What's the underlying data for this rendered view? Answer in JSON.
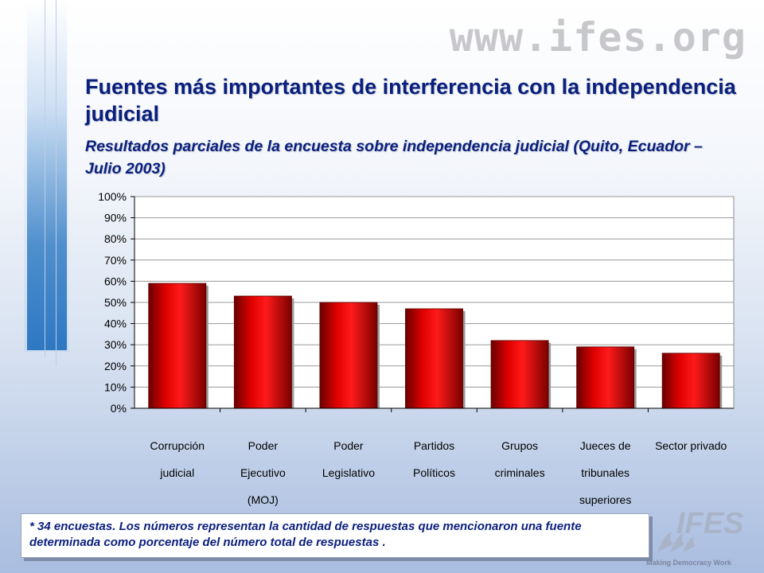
{
  "header": {
    "watermark": "www.ifes.org",
    "title": "Fuentes más importantes de interferencia con la independencia judicial",
    "subtitle": "Resultados parciales de la encuesta sobre independencia judicial (Quito, Ecuador – Julio 2003)"
  },
  "chart_data": {
    "type": "bar",
    "categories": [
      [
        "Corrupción",
        "judicial"
      ],
      [
        "Poder",
        "Ejecutivo",
        "(MOJ)"
      ],
      [
        "Poder",
        "Legislativo"
      ],
      [
        "Partidos",
        "Políticos"
      ],
      [
        "Grupos",
        "criminales"
      ],
      [
        "Jueces de",
        "tribunales",
        "superiores"
      ],
      [
        "Sector privado"
      ]
    ],
    "values": [
      59,
      53,
      50,
      47,
      32,
      29,
      26
    ],
    "ylim": [
      0,
      100
    ],
    "yticks": [
      "0%",
      "10%",
      "20%",
      "30%",
      "40%",
      "50%",
      "60%",
      "70%",
      "80%",
      "90%",
      "100%"
    ],
    "grid": true,
    "bar_color": "#e00000",
    "plot_background": "#ffffff"
  },
  "footnote": "* 34 encuestas. Los números representan la cantidad de respuestas que mencionaron una fuente determinada como porcentaje del número total de respuestas .",
  "logo": {
    "text": "IFES",
    "tagline": "Making Democracy Work"
  }
}
